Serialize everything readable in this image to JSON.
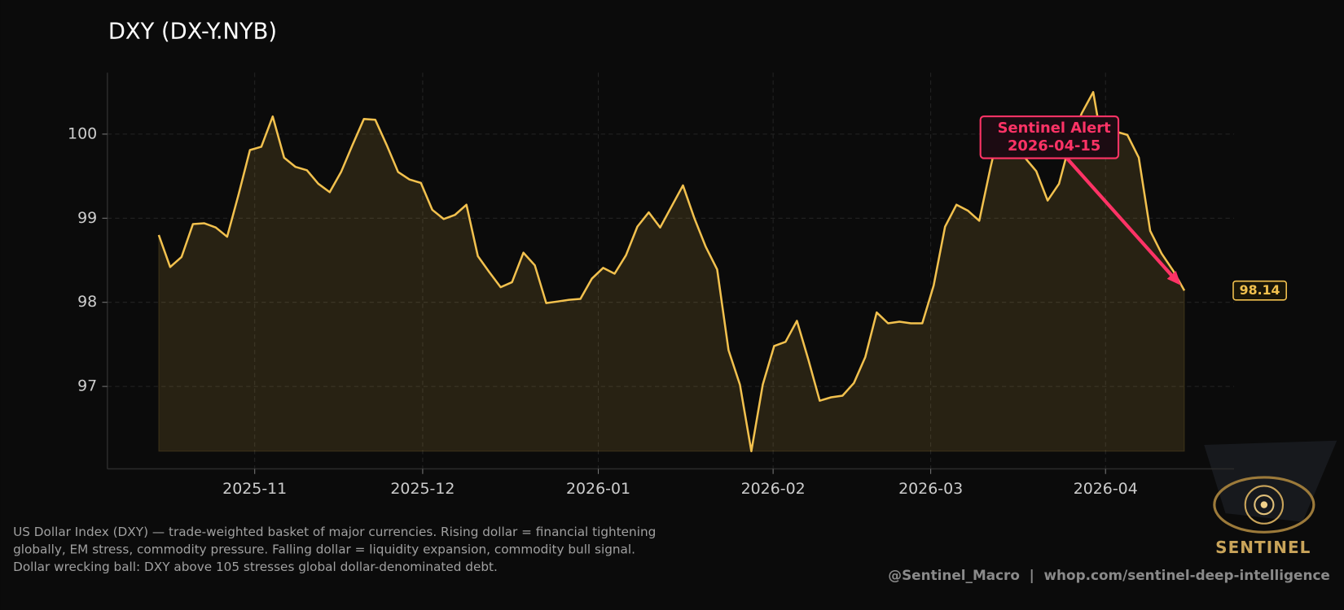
{
  "chart_data": {
    "type": "line",
    "title": "DXY (DX-Y.NYB)",
    "color": "#f2c14e",
    "values": [
      98.8,
      98.42,
      98.54,
      98.93,
      98.94,
      98.89,
      98.78,
      99.28,
      99.81,
      99.85,
      100.21,
      99.72,
      99.61,
      99.57,
      99.41,
      99.31,
      99.55,
      99.87,
      100.18,
      100.17,
      99.87,
      99.55,
      99.46,
      99.42,
      99.1,
      98.99,
      99.04,
      99.16,
      98.55,
      98.36,
      98.18,
      98.24,
      98.59,
      98.44,
      97.99,
      98.01,
      98.03,
      98.04,
      98.28,
      98.41,
      98.34,
      98.56,
      98.9,
      99.07,
      98.89,
      99.14,
      99.39,
      99.0,
      98.66,
      98.39,
      97.43,
      97.02,
      96.23,
      97.02,
      97.48,
      97.53,
      97.78,
      97.32,
      96.83,
      96.87,
      96.89,
      97.04,
      97.35,
      97.88,
      97.75,
      97.77,
      97.75,
      97.75,
      98.2,
      98.9,
      99.16,
      99.09,
      98.97,
      99.61,
      100.19,
      99.77,
      99.72,
      99.56,
      99.21,
      99.41,
      99.92,
      100.25,
      100.5,
      99.72,
      100.03,
      99.99,
      99.72,
      98.85,
      98.58,
      98.38,
      98.14
    ],
    "xlim": [
      -4.51,
      94.36
    ],
    "xticks": [
      {
        "value": 8.42,
        "label": "2025-11"
      },
      {
        "value": 23.16,
        "label": "2025-12"
      },
      {
        "value": 38.57,
        "label": "2026-01"
      },
      {
        "value": 53.91,
        "label": "2026-02"
      },
      {
        "value": 67.74,
        "label": "2026-03"
      },
      {
        "value": 83.08,
        "label": "2026-04"
      }
    ],
    "ylim": [
      96.02,
      100.73
    ],
    "yticks": [
      97,
      98,
      99,
      100
    ],
    "grid": true,
    "annotation": {
      "lines": [
        "Sentinel Alert",
        "2026-04-15"
      ],
      "color": "#ff3366"
    },
    "caption": [
      "US Dollar Index (DXY) — trade-weighted basket of major currencies. Rising dollar = financial tightening",
      "globally, EM stress, commodity pressure. Falling dollar = liquidity expansion, commodity bull signal.",
      "Dollar wrecking ball: DXY above 105 stresses global dollar-denominated debt."
    ],
    "credit": "@Sentinel_Macro  |  whop.com/sentinel-deep-intelligence",
    "logo_text": "SENTINEL"
  }
}
